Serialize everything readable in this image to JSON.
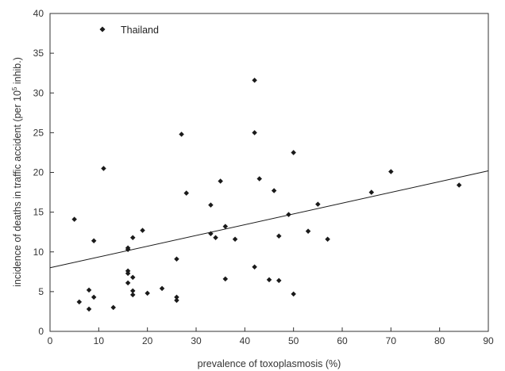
{
  "chart_data": {
    "type": "scatter",
    "title": "",
    "xlabel": "prevalence of toxoplasmosis (%)",
    "ylabel": {
      "prefix": "incidence of deaths in traffic accident (per 10",
      "superscript": "5",
      "suffix": " inhib.)"
    },
    "xlim": [
      0,
      90
    ],
    "ylim": [
      0,
      40
    ],
    "xticks": [
      "0",
      "10",
      "20",
      "30",
      "40",
      "50",
      "60",
      "70",
      "80",
      "90"
    ],
    "yticks": [
      "0",
      "5",
      "10",
      "15",
      "20",
      "25",
      "30",
      "35",
      "40"
    ],
    "legend": {
      "label": "Thailand",
      "placement": "top-left"
    },
    "grid": false,
    "colors": {
      "marker": "#1a1a1a",
      "line": "#1a1a1a",
      "axis": "#333333"
    },
    "series": [
      {
        "points": [
          [
            5,
            14.1
          ],
          [
            6,
            3.7
          ],
          [
            8,
            2.8
          ],
          [
            8,
            5.2
          ],
          [
            9,
            4.3
          ],
          [
            9,
            11.4
          ],
          [
            11,
            20.5
          ],
          [
            13,
            3.0
          ],
          [
            16,
            10.5
          ],
          [
            16,
            10.3
          ],
          [
            16,
            7.6
          ],
          [
            16,
            7.3
          ],
          [
            16,
            6.1
          ],
          [
            17,
            6.8
          ],
          [
            17,
            5.1
          ],
          [
            17,
            4.6
          ],
          [
            17,
            11.8
          ],
          [
            19,
            12.7
          ],
          [
            20,
            4.8
          ],
          [
            23,
            5.4
          ],
          [
            26,
            9.1
          ],
          [
            26,
            4.3
          ],
          [
            26,
            3.9
          ],
          [
            27,
            24.8
          ],
          [
            28,
            17.4
          ],
          [
            33,
            15.9
          ],
          [
            33,
            12.3
          ],
          [
            34,
            11.8
          ],
          [
            35,
            18.9
          ],
          [
            36,
            13.2
          ],
          [
            36,
            6.6
          ],
          [
            38,
            11.6
          ],
          [
            42,
            31.6
          ],
          [
            42,
            25.0
          ],
          [
            42,
            8.1
          ],
          [
            43,
            19.2
          ],
          [
            45,
            6.5
          ],
          [
            46,
            17.7
          ],
          [
            47,
            12.0
          ],
          [
            47,
            6.4
          ],
          [
            49,
            14.7
          ],
          [
            50,
            22.5
          ],
          [
            50,
            4.7
          ],
          [
            53,
            12.6
          ],
          [
            55,
            16.0
          ],
          [
            57,
            11.6
          ],
          [
            66,
            17.5
          ],
          [
            70,
            20.1
          ],
          [
            84,
            18.4
          ]
        ]
      }
    ],
    "trendline": {
      "x": [
        0,
        90
      ],
      "y": [
        8.0,
        20.2
      ]
    }
  }
}
